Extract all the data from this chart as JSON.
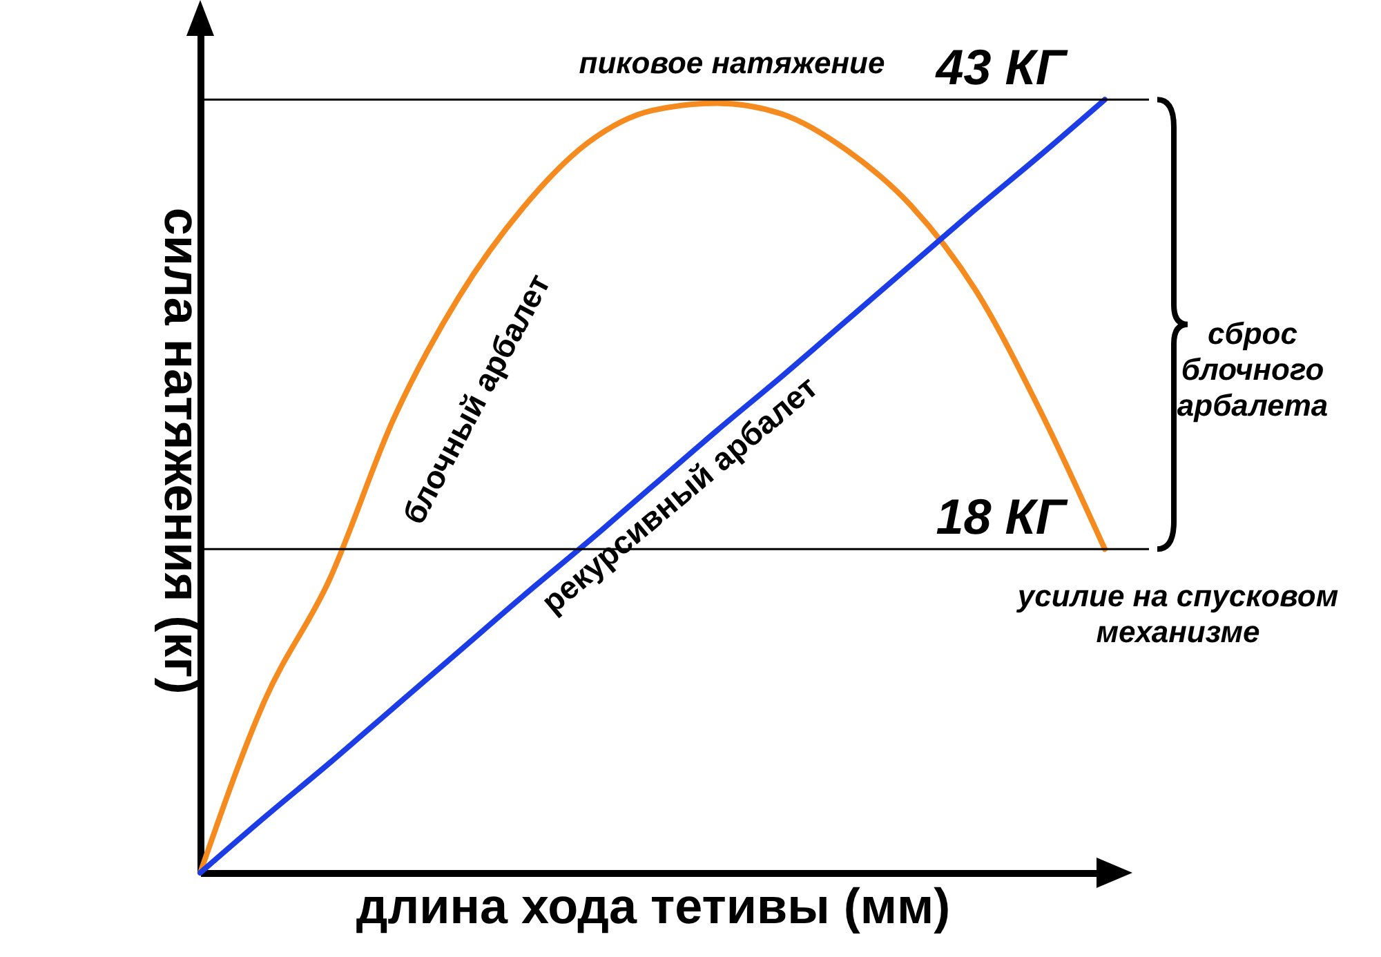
{
  "chart_data": {
    "type": "line",
    "xlabel": "длина хода тетивы (мм)",
    "ylabel": "сила натяжения (кг)",
    "categories": [
      null,
      null,
      null,
      null,
      null,
      null,
      null,
      null,
      null,
      null,
      null,
      null,
      null,
      null,
      null
    ],
    "ylim": [
      0,
      47
    ],
    "series": [
      {
        "name": "блочный арбалет",
        "color": "#f58a1f",
        "values": [
          0,
          9.6,
          16.3,
          25.3,
          32,
          37,
          40.6,
          42.4,
          42.8,
          42.2,
          40.2,
          37.1,
          32.4,
          25.7,
          18
        ]
      },
      {
        "name": "рекурсивный арбалет",
        "color": "#1c3ce6",
        "values": [
          0,
          3.1,
          6.1,
          9.2,
          12.3,
          15.4,
          18.4,
          21.5,
          24.6,
          27.6,
          30.7,
          33.8,
          36.9,
          39.9,
          43
        ]
      }
    ],
    "ref_lines": [
      {
        "axis": "y",
        "value": 43,
        "label": "43 КГ"
      },
      {
        "axis": "y",
        "value": 18,
        "label": "18 КГ"
      }
    ],
    "annotations": [
      "пиковое натяжение",
      "сброс\nблочного\nарбалета",
      "усилие на спусковом\nмеханизме"
    ],
    "legend": false,
    "marker": "none",
    "line_style": "solid"
  }
}
